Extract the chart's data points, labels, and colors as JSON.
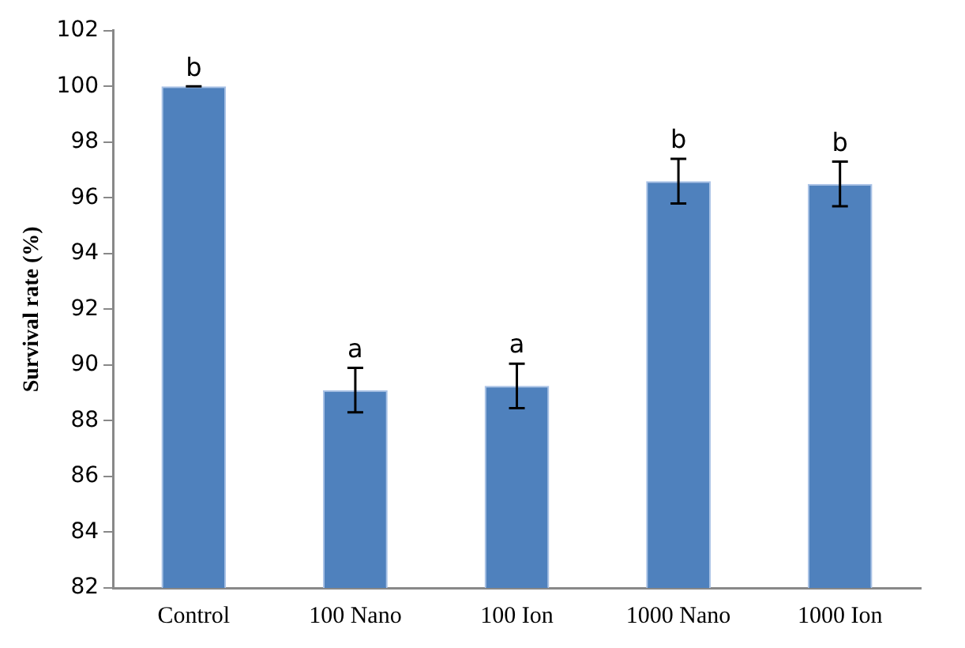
{
  "chart_data": {
    "type": "bar",
    "ylabel": "Survival rate (%)",
    "categories": [
      "Control",
      "100 Nano",
      "100 Ion",
      "1000 Nano",
      "1000 Ion"
    ],
    "values": [
      100,
      89.1,
      89.25,
      96.6,
      96.5
    ],
    "errors": [
      0,
      0.8,
      0.8,
      0.8,
      0.8
    ],
    "color": "#4f81bd",
    "ylim": [
      82,
      102
    ],
    "yticks": [
      82,
      84,
      86,
      88,
      90,
      92,
      94,
      96,
      98,
      100,
      102
    ],
    "grid": false,
    "annotations": [
      {
        "text": "b",
        "x": "Control",
        "y": 100
      },
      {
        "text": "a",
        "x": "100 Nano",
        "y": 89.9
      },
      {
        "text": "a",
        "x": "100 Ion",
        "y": 90.05
      },
      {
        "text": "b",
        "x": "1000 Nano",
        "y": 97.4
      },
      {
        "text": "b",
        "x": "1000 Ion",
        "y": 97.3
      }
    ]
  }
}
